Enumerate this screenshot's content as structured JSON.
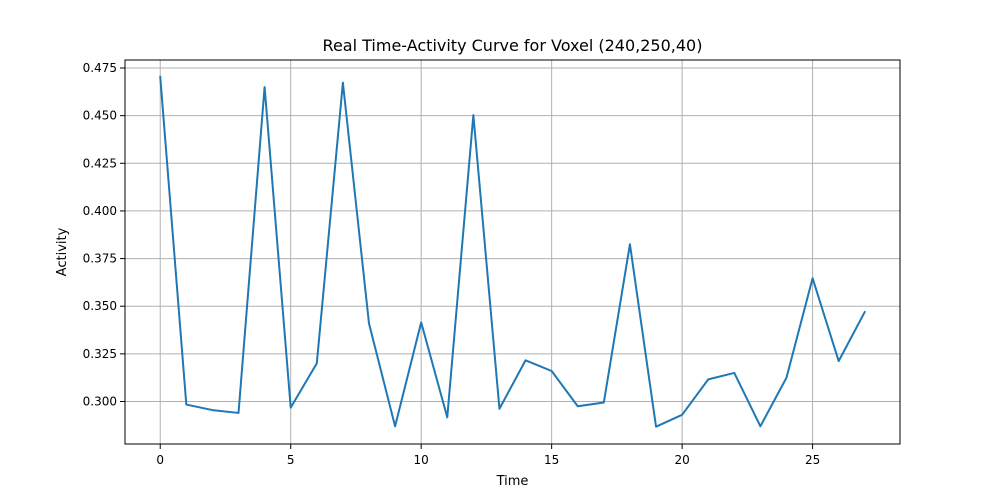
{
  "chart_data": {
    "type": "line",
    "title": "Real Time-Activity Curve for Voxel (240,250,40)",
    "xlabel": "Time",
    "ylabel": "Activity",
    "xlim": [
      -1.35,
      28.35
    ],
    "ylim": [
      0.2777,
      0.4792
    ],
    "xticks": [
      0,
      5,
      10,
      15,
      20,
      25
    ],
    "xtick_labels": [
      "0",
      "5",
      "10",
      "15",
      "20",
      "25"
    ],
    "yticks": [
      0.3,
      0.325,
      0.35,
      0.375,
      0.4,
      0.425,
      0.45,
      0.475
    ],
    "ytick_labels": [
      "0.300",
      "0.325",
      "0.350",
      "0.375",
      "0.400",
      "0.425",
      "0.450",
      "0.475"
    ],
    "grid": true,
    "series_color": "#1f77b4",
    "series": [
      {
        "x": [
          0,
          1,
          2,
          3,
          4,
          5,
          6,
          7,
          8,
          9,
          10,
          11,
          12,
          13,
          14,
          15,
          16,
          17,
          18,
          19,
          20,
          21,
          22,
          23,
          24,
          25,
          26,
          27
        ],
        "values": [
          0.4705,
          0.2984,
          0.2955,
          0.294,
          0.465,
          0.2968,
          0.32,
          0.4673,
          0.341,
          0.287,
          0.3415,
          0.2917,
          0.4503,
          0.2962,
          0.3216,
          0.316,
          0.2975,
          0.2995,
          0.3825,
          0.2868,
          0.293,
          0.3116,
          0.315,
          0.287,
          0.3125,
          0.3647,
          0.3212,
          0.347
        ]
      }
    ]
  }
}
